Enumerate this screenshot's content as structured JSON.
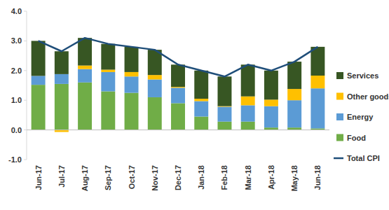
{
  "chart_data": {
    "type": "bar",
    "stacked": true,
    "grid": false,
    "legend": "right",
    "categories": [
      "Jun-17",
      "Jul-17",
      "Aug-17",
      "Sep-17",
      "Oct-17",
      "Nov-17",
      "Dec-17",
      "Jan-18",
      "Feb-18",
      "Mar-18",
      "Apr-18",
      "May-18",
      "Jun-18"
    ],
    "ylim": [
      -1.0,
      4.0
    ],
    "yticks": [
      {
        "value": -1.0,
        "label": "-1.0"
      },
      {
        "value": 0.0,
        "label": "0.0"
      },
      {
        "value": 1.0,
        "label": "1.0"
      },
      {
        "value": 2.0,
        "label": "2.0"
      },
      {
        "value": 3.0,
        "label": "3.0"
      },
      {
        "value": 4.0,
        "label": "4.0"
      }
    ],
    "series": [
      {
        "name": "Food",
        "type": "bar",
        "color": "#70ad47",
        "values": [
          1.52,
          1.55,
          1.6,
          1.3,
          1.25,
          1.1,
          0.9,
          0.45,
          0.28,
          0.28,
          0.08,
          0.08,
          0.05
        ]
      },
      {
        "name": "Energy",
        "type": "bar",
        "color": "#5b9bd5",
        "values": [
          0.3,
          0.33,
          0.45,
          0.65,
          0.55,
          0.6,
          0.52,
          0.52,
          0.5,
          0.55,
          0.72,
          0.92,
          1.35
        ]
      },
      {
        "name": "Other goods",
        "type": "bar",
        "color": "#ffc000",
        "values": [
          0.0,
          -0.07,
          0.12,
          0.08,
          0.15,
          0.15,
          0.03,
          0.08,
          0.02,
          0.3,
          0.22,
          0.38,
          0.43
        ]
      },
      {
        "name": "Services",
        "type": "bar",
        "color": "#375623",
        "values": [
          1.18,
          0.77,
          0.93,
          0.87,
          0.85,
          0.85,
          0.75,
          0.95,
          1.0,
          1.07,
          0.98,
          0.92,
          0.97
        ]
      },
      {
        "name": "Total CPI",
        "type": "line",
        "color": "#1f4e79",
        "marker": "none",
        "line_style": "solid",
        "values": [
          3.0,
          2.65,
          3.1,
          2.9,
          2.8,
          2.7,
          2.2,
          2.0,
          1.8,
          2.2,
          2.0,
          2.3,
          2.8
        ]
      }
    ]
  }
}
